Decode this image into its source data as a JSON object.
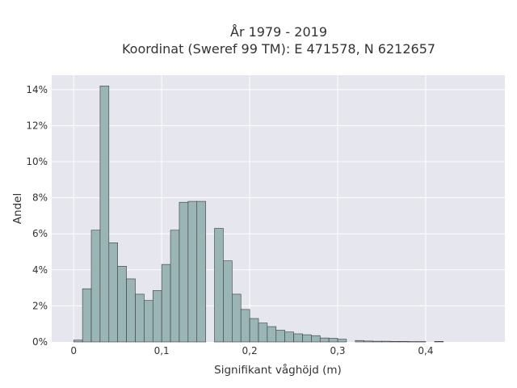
{
  "chart_data": {
    "type": "bar",
    "title_lines": [
      "År 1979 - 2019",
      "Koordinat (Sweref 99 TM): E 471578, N 6212657"
    ],
    "xlabel": "Signifikant våghöjd (m)",
    "ylabel": "Andel",
    "xlim": [
      -0.025,
      0.49
    ],
    "ylim": [
      0,
      14.8
    ],
    "x_ticks": [
      {
        "value": 0,
        "label": "0"
      },
      {
        "value": 0.1,
        "label": "0,1"
      },
      {
        "value": 0.2,
        "label": "0,2"
      },
      {
        "value": 0.3,
        "label": "0,3"
      },
      {
        "value": 0.4,
        "label": "0,4"
      }
    ],
    "y_ticks": [
      {
        "value": 0,
        "label": "0%"
      },
      {
        "value": 2,
        "label": "2%"
      },
      {
        "value": 4,
        "label": "4%"
      },
      {
        "value": 6,
        "label": "6%"
      },
      {
        "value": 8,
        "label": "8%"
      },
      {
        "value": 10,
        "label": "10%"
      },
      {
        "value": 12,
        "label": "12%"
      },
      {
        "value": 14,
        "label": "14%"
      }
    ],
    "bin_width": 0.01,
    "bin_starts": [
      0.0,
      0.01,
      0.02,
      0.03,
      0.04,
      0.05,
      0.06,
      0.07,
      0.08,
      0.09,
      0.1,
      0.11,
      0.12,
      0.13,
      0.14,
      0.16,
      0.17,
      0.18,
      0.19,
      0.2,
      0.21,
      0.22,
      0.23,
      0.24,
      0.25,
      0.26,
      0.27,
      0.28,
      0.29,
      0.3,
      0.32,
      0.33,
      0.34,
      0.35,
      0.36,
      0.37,
      0.38,
      0.39,
      0.41
    ],
    "values": [
      0.1,
      2.95,
      6.2,
      14.2,
      5.5,
      4.2,
      3.5,
      2.65,
      2.3,
      2.85,
      4.3,
      6.2,
      7.75,
      7.8,
      7.8,
      6.3,
      4.5,
      2.65,
      1.8,
      1.3,
      1.05,
      0.85,
      0.65,
      0.55,
      0.45,
      0.4,
      0.35,
      0.22,
      0.2,
      0.15,
      0.08,
      0.05,
      0.04,
      0.04,
      0.03,
      0.03,
      0.02,
      0.02,
      0.03
    ],
    "colors": {
      "bar_fill": "#9ab5b5",
      "bar_stroke": "#3a3a3a",
      "plot_bg": "#e6e6ee",
      "grid": "#ffffff"
    }
  }
}
